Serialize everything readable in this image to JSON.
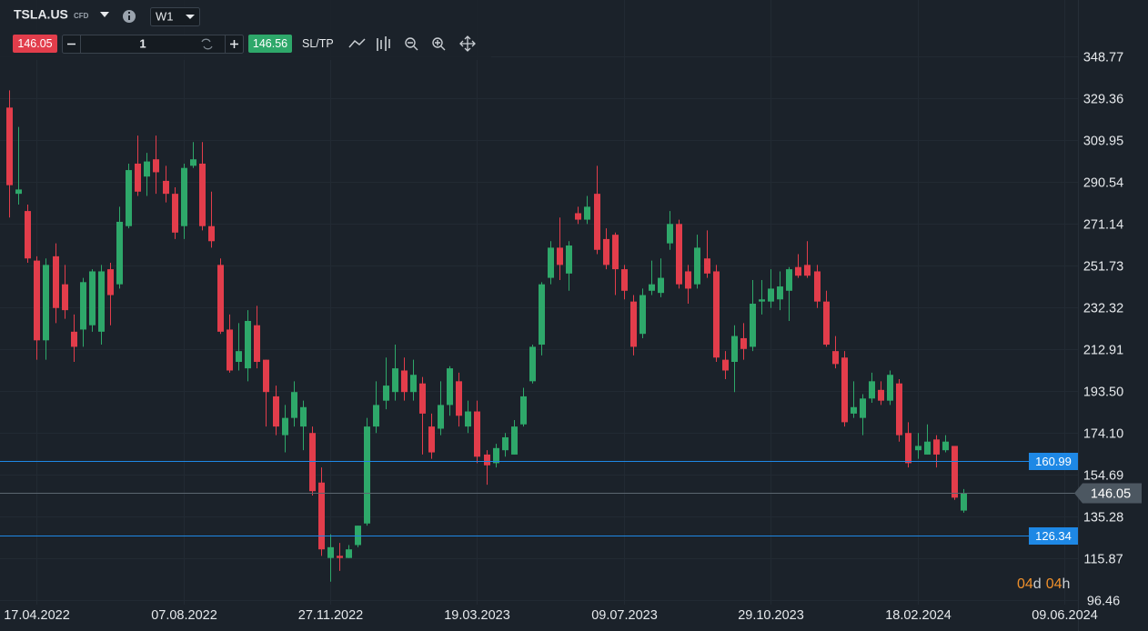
{
  "toolbar": {
    "symbol": "TSLA.US",
    "symbol_type": "CFD",
    "timeframe": "W1",
    "sell_price": "146.05",
    "quantity": "1",
    "buy_price": "146.56",
    "sl_tp": "SL/TP"
  },
  "chart_data": {
    "type": "candlestick",
    "up_color": "#2ea86a",
    "down_color": "#e23d4b",
    "grid": true,
    "xlim": [
      -1,
      116.5
    ],
    "xticks": [
      {
        "value": 3,
        "label": "17.04.2022"
      },
      {
        "value": 19,
        "label": "07.08.2022"
      },
      {
        "value": 35,
        "label": "27.11.2022"
      },
      {
        "value": 51,
        "label": "19.03.2023"
      },
      {
        "value": 67,
        "label": "09.07.2023"
      },
      {
        "value": 83,
        "label": "29.10.2023"
      },
      {
        "value": 99,
        "label": "18.02.2024"
      },
      {
        "value": 115,
        "label": "09.06.2024"
      }
    ],
    "ylim": [
      96.46,
      348.77
    ],
    "yticks": [
      348.77,
      329.36,
      309.95,
      290.54,
      271.14,
      251.73,
      232.32,
      212.91,
      {
        "value": 193.5,
        "label": "193.50"
      },
      {
        "value": 174.1,
        "label": "174.10"
      },
      154.69,
      135.28,
      115.87,
      96.46
    ],
    "open": [
      325,
      285,
      277,
      254,
      217,
      256,
      243,
      221,
      222,
      224,
      221,
      250,
      243,
      270,
      299,
      293,
      301,
      291,
      285,
      270,
      298,
      299,
      270,
      252,
      222,
      207,
      204,
      224,
      208,
      191,
      173,
      181,
      177,
      174,
      151,
      116,
      117,
      116,
      122,
      132,
      177,
      189,
      193,
      203,
      193,
      197,
      177,
      176,
      187,
      198,
      177,
      184,
      164,
      160,
      166,
      164,
      178,
      198,
      215,
      246,
      260,
      248,
      276,
      273,
      285,
      264,
      266,
      250,
      235,
      220,
      240,
      239,
      262,
      271,
      249,
      243,
      255,
      249,
      208,
      207,
      218,
      214,
      235,
      235,
      236,
      240,
      251,
      252,
      249,
      235,
      212,
      209,
      183,
      181,
      190,
      194,
      189,
      197,
      174,
      166,
      164,
      171,
      166,
      168,
      138
    ],
    "high": [
      333,
      316,
      280,
      256,
      255,
      262,
      252,
      229,
      246,
      250,
      252,
      253,
      279,
      299,
      312,
      304,
      312,
      298,
      288,
      299,
      309,
      309,
      286,
      255,
      229,
      225,
      231,
      233,
      208,
      196,
      187,
      198,
      189,
      177,
      158,
      127,
      123,
      122,
      131,
      181,
      198,
      209,
      215,
      209,
      208,
      200,
      183,
      198,
      205,
      202,
      189,
      189,
      166,
      169,
      174,
      180,
      195,
      215,
      244,
      263,
      274,
      263,
      279,
      284,
      298,
      269,
      267,
      252,
      238,
      241,
      254,
      255,
      277,
      273,
      252,
      266,
      268,
      252,
      212,
      224,
      225,
      245,
      245,
      250,
      249,
      251,
      257,
      263,
      252,
      240,
      219,
      212,
      198,
      192,
      202,
      198,
      203,
      199,
      179,
      174,
      178,
      173,
      173,
      168,
      148
    ],
    "low": [
      274,
      280,
      253,
      208,
      208,
      225,
      227,
      207,
      214,
      221,
      215,
      224,
      241,
      269,
      284,
      284,
      285,
      281,
      264,
      264,
      297,
      268,
      260,
      220,
      202,
      203,
      198,
      204,
      177,
      173,
      165,
      177,
      166,
      145,
      117,
      105,
      110,
      116,
      121,
      131,
      174,
      185,
      189,
      189,
      189,
      164,
      162,
      173,
      182,
      177,
      174,
      160,
      150,
      158,
      163,
      164,
      177,
      197,
      210,
      243,
      245,
      240,
      271,
      271,
      257,
      250,
      238,
      236,
      210,
      218,
      238,
      237,
      259,
      241,
      234,
      241,
      246,
      207,
      199,
      193,
      208,
      212,
      229,
      232,
      231,
      226,
      246,
      246,
      232,
      214,
      204,
      177,
      181,
      173,
      188,
      187,
      187,
      170,
      158,
      162,
      164,
      158,
      165,
      143,
      137
    ],
    "close": [
      289,
      287,
      255,
      217,
      252,
      232,
      231,
      214,
      244,
      249,
      249,
      238,
      272,
      296,
      286,
      300,
      295,
      285,
      267,
      297,
      301,
      270,
      263,
      221,
      203,
      212,
      226,
      207,
      193,
      177,
      181,
      193,
      186,
      147,
      120,
      121,
      116,
      120,
      131,
      177,
      187,
      196,
      204,
      193,
      201,
      183,
      165,
      187,
      204,
      182,
      184,
      163,
      159,
      167,
      172,
      177,
      191,
      214,
      243,
      260,
      252,
      261,
      273,
      279,
      259,
      252,
      250,
      240,
      214,
      238,
      243,
      246,
      271,
      243,
      241,
      260,
      248,
      209,
      203,
      219,
      213,
      234,
      236,
      241,
      242,
      250,
      247,
      247,
      235,
      215,
      206,
      179,
      186,
      190,
      198,
      189,
      201,
      173,
      160,
      168,
      170,
      164,
      170,
      144,
      146.05
    ],
    "levels": [
      {
        "value": 160.99,
        "color": "#1e88e5"
      },
      {
        "value": 146.05,
        "color": "#5b6670"
      },
      {
        "value": 126.34,
        "color": "#1e88e5"
      }
    ],
    "countdown": [
      "04",
      "d",
      "04",
      "h"
    ]
  }
}
